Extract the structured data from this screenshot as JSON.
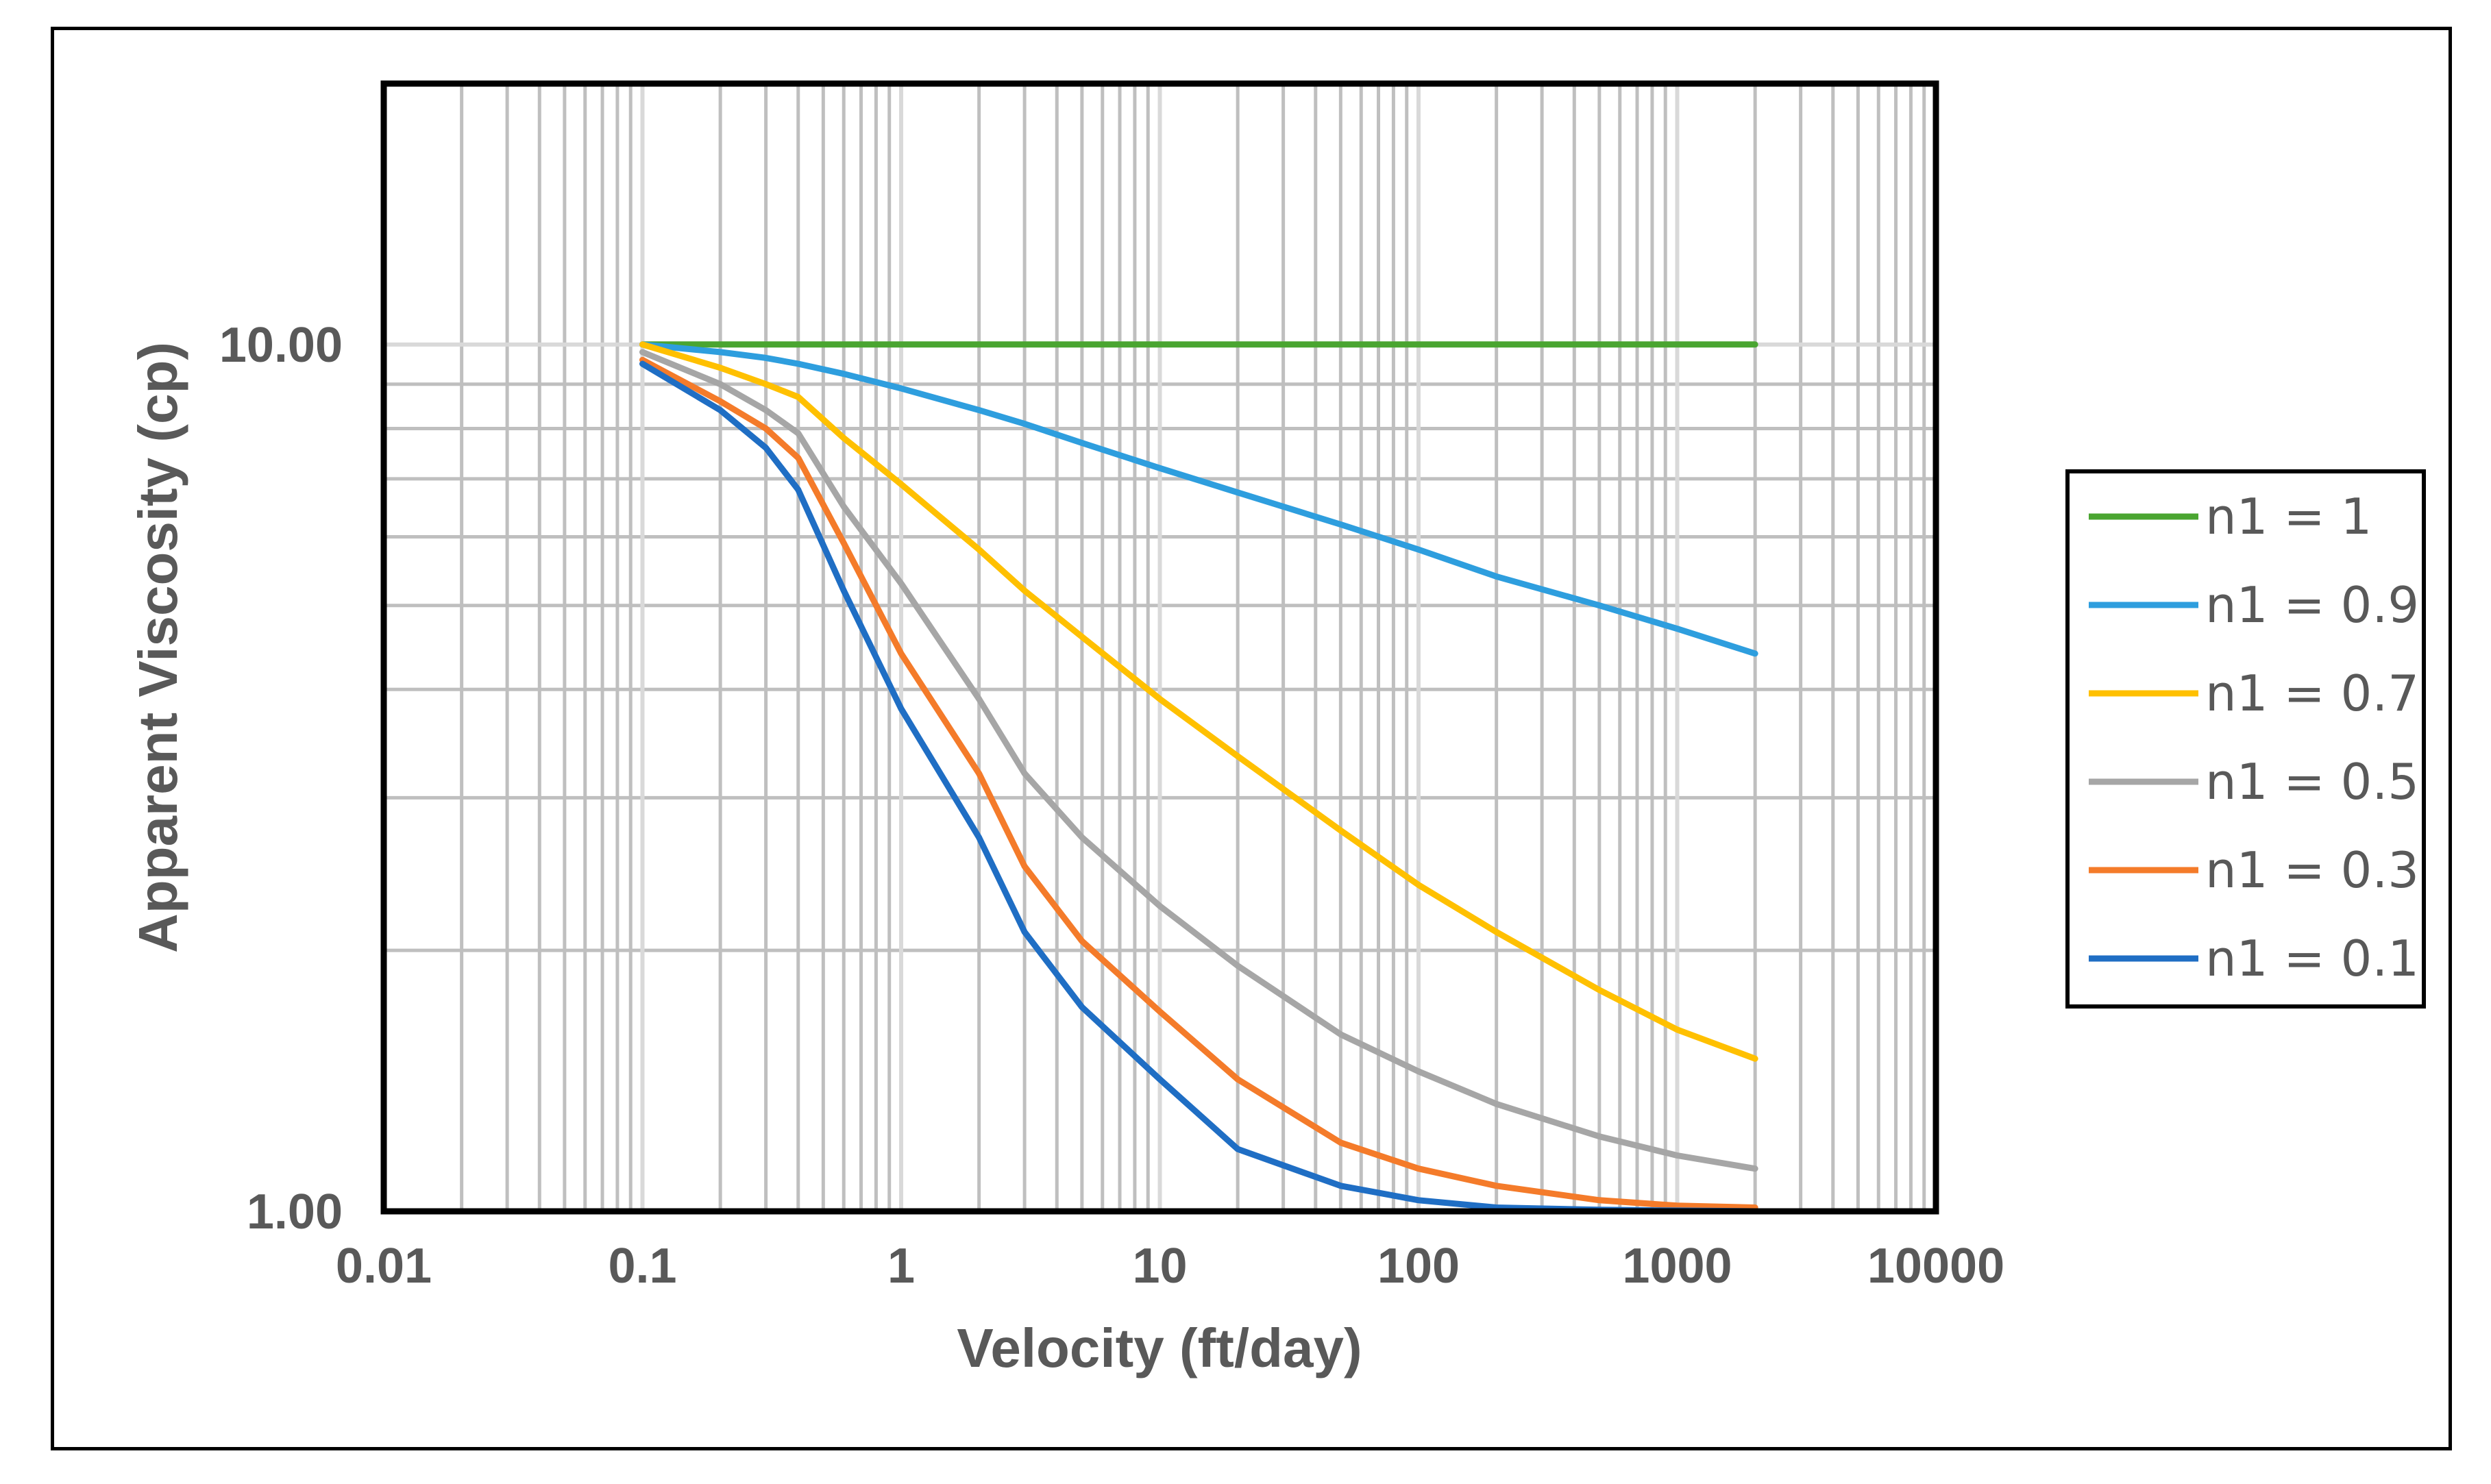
{
  "chart_data": {
    "type": "line",
    "xscale": "log",
    "yscale": "log",
    "xlabel": "Velocity (ft/day)",
    "ylabel": "Apparent Viscosity (cp)",
    "xlim": [
      0.01,
      10000
    ],
    "ylim": [
      1,
      20
    ],
    "x_tick_labels": [
      "0.01",
      "0.1",
      "1",
      "10",
      "100",
      "1000",
      "10000"
    ],
    "x_ticks": [
      0.01,
      0.1,
      1,
      10,
      100,
      1000,
      10000
    ],
    "y_tick_labels": [
      "1.00",
      "10.00"
    ],
    "y_ticks": [
      1,
      10
    ],
    "grid": true,
    "legend_position": "right",
    "x": [
      0.1,
      0.2,
      0.3,
      0.4,
      0.6,
      1,
      2,
      3,
      5,
      10,
      20,
      50,
      100,
      200,
      500,
      1000,
      2000
    ],
    "series": [
      {
        "name": "n1 = 1",
        "color": "#4aa531",
        "values": [
          10,
          10,
          10,
          10,
          10,
          10,
          10,
          10,
          10,
          10,
          10,
          10,
          10,
          10,
          10,
          10,
          10
        ]
      },
      {
        "name": "n1 = 0.9",
        "color": "#2e9ede",
        "values": [
          10,
          9.8,
          9.65,
          9.5,
          9.25,
          8.9,
          8.4,
          8.1,
          7.7,
          7.2,
          6.75,
          6.2,
          5.8,
          5.4,
          5.0,
          4.7,
          4.4
        ]
      },
      {
        "name": "n1 = 0.7",
        "color": "#ffc000",
        "values": [
          10,
          9.4,
          9.0,
          8.7,
          7.8,
          6.9,
          5.8,
          5.2,
          4.6,
          3.9,
          3.35,
          2.75,
          2.38,
          2.1,
          1.8,
          1.62,
          1.5
        ]
      },
      {
        "name": "n1 = 0.5",
        "color": "#a6a6a6",
        "values": [
          9.8,
          9.0,
          8.4,
          7.9,
          6.5,
          5.3,
          3.9,
          3.2,
          2.7,
          2.25,
          1.92,
          1.6,
          1.45,
          1.33,
          1.22,
          1.16,
          1.12
        ]
      },
      {
        "name": "n1 = 0.3",
        "color": "#f47b2a",
        "values": [
          9.6,
          8.6,
          8.0,
          7.4,
          5.9,
          4.4,
          3.2,
          2.5,
          2.05,
          1.7,
          1.42,
          1.2,
          1.12,
          1.07,
          1.03,
          1.015,
          1.01
        ]
      },
      {
        "name": "n1 = 0.1",
        "color": "#1f6ec4",
        "values": [
          9.5,
          8.4,
          7.6,
          6.8,
          5.2,
          3.8,
          2.7,
          2.1,
          1.72,
          1.42,
          1.18,
          1.07,
          1.03,
          1.01,
          1.004,
          1.002,
          1.0
        ]
      }
    ]
  }
}
